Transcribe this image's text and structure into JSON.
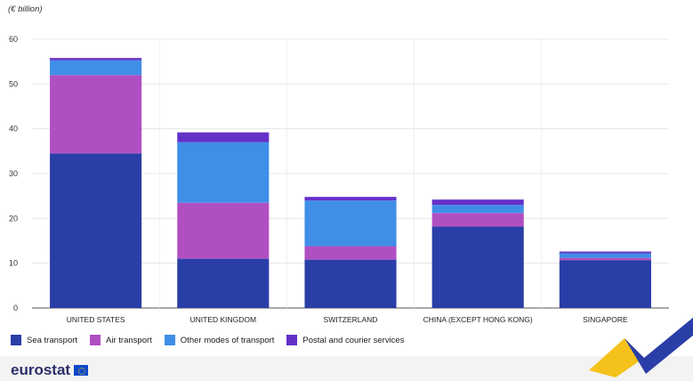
{
  "unit_label": "(€ billion)",
  "logo_text": "eurostat",
  "chart_data": {
    "type": "bar",
    "stacked": true,
    "categories": [
      "UNITED STATES",
      "UNITED KINGDOM",
      "SWITZERLAND",
      "CHINA (EXCEPT HONG KONG)",
      "SINGAPORE"
    ],
    "series": [
      {
        "name": "Sea transport",
        "color": "#2a3ea8",
        "values": [
          34.5,
          11,
          10.8,
          18.2,
          10.7
        ]
      },
      {
        "name": "Air transport",
        "color": "#b04fc2",
        "values": [
          17.5,
          12.5,
          3,
          3,
          0.5
        ]
      },
      {
        "name": "Other modes of transport",
        "color": "#3f8ee8",
        "values": [
          3.3,
          13.5,
          10.2,
          1.8,
          1
        ]
      },
      {
        "name": "Postal and courier services",
        "color": "#6431c8",
        "values": [
          0.5,
          2.2,
          0.8,
          1.2,
          0.4
        ]
      }
    ],
    "ylim": [
      0,
      60
    ],
    "yticks": [
      0,
      10,
      20,
      30,
      40,
      50,
      60
    ],
    "grid": true,
    "legend_position": "bottom-left"
  }
}
